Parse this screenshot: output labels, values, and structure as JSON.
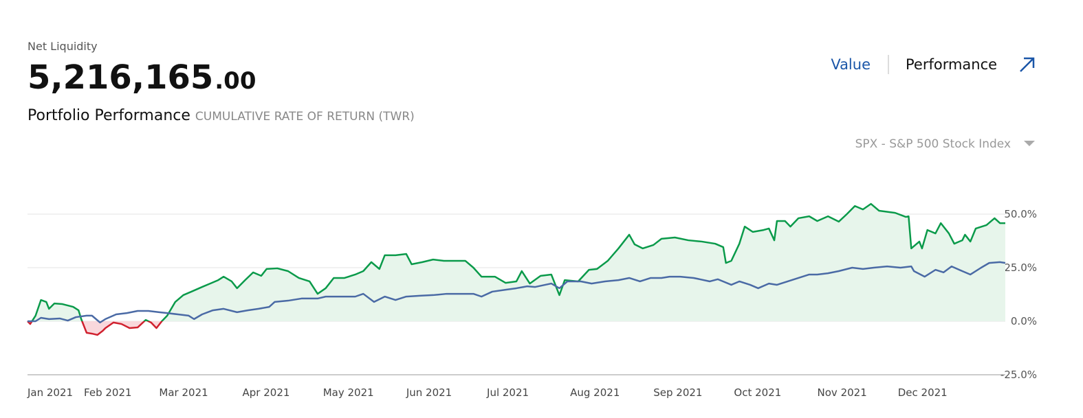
{
  "header": {
    "label": "Net Liquidity",
    "amount": "5,216,165",
    "amount_decimals": ".00",
    "tabs": [
      "Value",
      "Performance"
    ],
    "section_title": "Portfolio Performance",
    "section_subtitle": "CUMULATIVE RATE OF RETURN (TWR)",
    "benchmark": "SPX - S&P 500 Stock Index"
  },
  "chart_data": {
    "type": "line",
    "xlim": [
      10,
      374
    ],
    "xticks": [
      {
        "value": 10,
        "label": "Jan 2021"
      },
      {
        "value": 31,
        "label": "Feb 2021"
      },
      {
        "value": 59,
        "label": "Mar 2021"
      },
      {
        "value": 90,
        "label": "Apr 2021"
      },
      {
        "value": 120,
        "label": "May 2021"
      },
      {
        "value": 151,
        "label": "Jun 2021"
      },
      {
        "value": 181,
        "label": "Jul 2021"
      },
      {
        "value": 212,
        "label": "Aug 2021"
      },
      {
        "value": 243,
        "label": "Sep 2021"
      },
      {
        "value": 273,
        "label": "Oct 2021"
      },
      {
        "value": 304,
        "label": "Nov 2021"
      },
      {
        "value": 334,
        "label": "Dec 2021"
      }
    ],
    "ylim": [
      -25,
      50
    ],
    "yticks": [
      {
        "value": -25,
        "label": "-25.0%"
      },
      {
        "value": 0,
        "label": "0.0%"
      },
      {
        "value": 25,
        "label": "25.0%"
      },
      {
        "value": 50,
        "label": "50.0%"
      }
    ],
    "grid": true,
    "series": [
      {
        "color": "#0a9a4a",
        "negative_color": "#d0202e",
        "fill": "#e7f5eb",
        "negative_fill": "#f9d8dc",
        "x": [
          10,
          11,
          13,
          15,
          17,
          18,
          20,
          23,
          27,
          29,
          30,
          32,
          34,
          36,
          38,
          39,
          42,
          45,
          48,
          51,
          54,
          56,
          58,
          60,
          62,
          65,
          68,
          71,
          75,
          78,
          81,
          83,
          86,
          88,
          91,
          94,
          97,
          99,
          103,
          107,
          111,
          115,
          118,
          121,
          124,
          128,
          132,
          135,
          138,
          141,
          143,
          147,
          151,
          153,
          157,
          161,
          165,
          169,
          173,
          176,
          179,
          184,
          188,
          192,
          194,
          197,
          201,
          205,
          208,
          210,
          215,
          219,
          222,
          226,
          230,
          234,
          236,
          239,
          243,
          246,
          251,
          256,
          261,
          266,
          269,
          270,
          272,
          275,
          277,
          280,
          284,
          286,
          288,
          289,
          292,
          294,
          297,
          301,
          304,
          308,
          312,
          315,
          318,
          321,
          324,
          327,
          333,
          337,
          338,
          339,
          342,
          343,
          345,
          348,
          350,
          353,
          355,
          358,
          359,
          361,
          363,
          367,
          370,
          372,
          374
        ],
        "values": [
          0,
          -1.3,
          2.6,
          9.9,
          9.0,
          5.8,
          8.3,
          8.0,
          6.7,
          5.1,
          1.0,
          -5.4,
          -5.8,
          -6.4,
          -4.5,
          -3.2,
          -0.6,
          -1.3,
          -3.2,
          -2.9,
          0.6,
          -0.6,
          -3.2,
          0,
          2.6,
          9.0,
          12.2,
          13.8,
          16.0,
          17.6,
          19.2,
          20.8,
          18.6,
          15.4,
          19.2,
          22.8,
          21.2,
          24.4,
          24.7,
          23.4,
          20.2,
          18.6,
          12.8,
          15.4,
          20.2,
          20.2,
          21.8,
          23.4,
          27.6,
          24.4,
          30.8,
          30.8,
          31.4,
          26.6,
          27.6,
          28.8,
          28.2,
          28.2,
          28.2,
          25.0,
          20.8,
          20.8,
          17.9,
          18.6,
          23.4,
          17.6,
          21.2,
          21.8,
          12.2,
          19.2,
          18.6,
          24.0,
          24.4,
          28.2,
          34.0,
          40.4,
          35.9,
          34.0,
          35.6,
          38.5,
          39.1,
          37.8,
          37.2,
          36.2,
          34.6,
          27.2,
          28.2,
          36.2,
          44.2,
          41.7,
          42.6,
          43.3,
          37.8,
          46.8,
          46.8,
          44.2,
          48.1,
          49.0,
          46.8,
          49.0,
          46.5,
          50.0,
          53.8,
          52.2,
          54.8,
          51.6,
          50.6,
          48.7,
          49.0,
          34.0,
          37.2,
          34.0,
          42.6,
          41.0,
          45.8,
          41.0,
          36.2,
          37.8,
          40.4,
          37.2,
          43.3,
          44.9,
          48.1,
          45.8,
          45.8
        ]
      },
      {
        "color": "#4a6aa5",
        "x": [
          10,
          13,
          15,
          18,
          22,
          25,
          28,
          32,
          34,
          37,
          39,
          43,
          47,
          51,
          55,
          59,
          62,
          66,
          70,
          72,
          75,
          79,
          83,
          88,
          92,
          96,
          100,
          102,
          107,
          112,
          118,
          121,
          126,
          132,
          135,
          139,
          143,
          147,
          151,
          156,
          161,
          166,
          171,
          176,
          179,
          183,
          188,
          192,
          196,
          199,
          205,
          208,
          211,
          216,
          220,
          225,
          230,
          234,
          238,
          242,
          246,
          249,
          253,
          258,
          264,
          267,
          272,
          275,
          279,
          282,
          286,
          289,
          293,
          297,
          301,
          304,
          308,
          312,
          317,
          321,
          325,
          330,
          335,
          339,
          340,
          344,
          348,
          351,
          354,
          358,
          361,
          365,
          368,
          372,
          374
        ],
        "values": [
          0,
          0,
          1.6,
          1.0,
          1.3,
          0.3,
          1.9,
          2.6,
          2.6,
          -0.6,
          1.0,
          3.2,
          3.8,
          4.8,
          4.8,
          4.2,
          3.8,
          3.2,
          2.6,
          1.0,
          3.2,
          5.1,
          5.8,
          4.2,
          5.1,
          5.8,
          6.7,
          9.0,
          9.6,
          10.6,
          10.6,
          11.5,
          11.5,
          11.5,
          12.8,
          9.0,
          11.5,
          9.9,
          11.5,
          11.9,
          12.2,
          12.8,
          12.8,
          12.8,
          11.5,
          13.8,
          14.7,
          15.4,
          16.3,
          16.0,
          17.6,
          15.4,
          18.6,
          18.6,
          17.6,
          18.6,
          19.2,
          20.2,
          18.6,
          20.2,
          20.2,
          20.8,
          20.8,
          20.2,
          18.6,
          19.6,
          17.0,
          18.6,
          17.0,
          15.4,
          17.6,
          17.0,
          18.6,
          20.2,
          21.8,
          21.8,
          22.4,
          23.4,
          25.0,
          24.4,
          25.0,
          25.6,
          25.0,
          25.6,
          23.4,
          20.8,
          24.0,
          22.8,
          25.6,
          23.4,
          21.8,
          25.0,
          27.2,
          27.6,
          27.2
        ]
      }
    ]
  }
}
